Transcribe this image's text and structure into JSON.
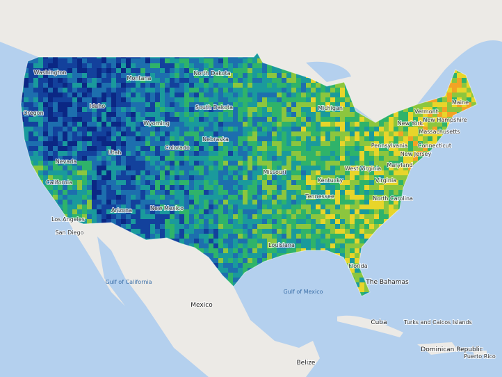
{
  "map": {
    "labels": [
      "Washington",
      "Oregon",
      "Idaho",
      "Montana",
      "Wyoming",
      "Nevada",
      "California",
      "Utah",
      "Colorado",
      "Arizona",
      "New Mexico",
      "North Dakota",
      "South Dakota",
      "Nebraska",
      "Missouri",
      "Michigan",
      "Kentucky",
      "Tennessee",
      "North Carolina",
      "Virginia",
      "West Virginia",
      "Pennsylvania",
      "New York",
      "Maine",
      "Vermont",
      "New Hampshire",
      "Massachusetts",
      "Connecticut",
      "New Jersey",
      "Maryland",
      "Louisiana",
      "Florida",
      "San Diego",
      "Los Angeles",
      "Mexico",
      "Gulf of Mexico",
      "Gulf of California",
      "The Bahamas",
      "Cuba",
      "Belize",
      "Dominican Republic",
      "Puerto Rico",
      "Turks and Caicos Islands"
    ]
  }
}
